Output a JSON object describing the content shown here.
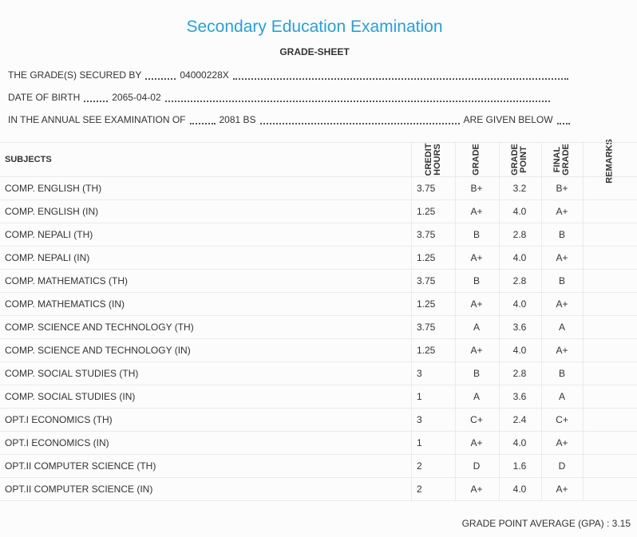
{
  "header": {
    "title": "Secondary Education Examination",
    "subtitle": "GRADE-SHEET"
  },
  "info": [
    {
      "label": "THE GRADE(S) SECURED BY",
      "value": "04000228X"
    },
    {
      "label": "DATE OF BIRTH",
      "value": "2065-04-02"
    },
    {
      "label": "IN THE ANNUAL SEE EXAMINATION OF",
      "value": "2081 BS",
      "tail": "ARE GIVEN BELOW"
    }
  ],
  "table": {
    "columns": [
      "SUBJECTS",
      "CREDIT HOURS",
      "GRADE",
      "GRADE POINT",
      "FINAL GRADE",
      "REMARKS"
    ],
    "rows": [
      [
        "COMP. ENGLISH (TH)",
        "3.75",
        "B+",
        "3.2",
        "B+"
      ],
      [
        "COMP. ENGLISH (IN)",
        "1.25",
        "A+",
        "4.0",
        "A+"
      ],
      [
        "COMP. NEPALI (TH)",
        "3.75",
        "B",
        "2.8",
        "B"
      ],
      [
        "COMP. NEPALI (IN)",
        "1.25",
        "A+",
        "4.0",
        "A+"
      ],
      [
        "COMP. MATHEMATICS (TH)",
        "3.75",
        "B",
        "2.8",
        "B"
      ],
      [
        "COMP. MATHEMATICS (IN)",
        "1.25",
        "A+",
        "4.0",
        "A+"
      ],
      [
        "COMP. SCIENCE AND TECHNOLOGY (TH)",
        "3.75",
        "A",
        "3.6",
        "A"
      ],
      [
        "COMP. SCIENCE AND TECHNOLOGY (IN)",
        "1.25",
        "A+",
        "4.0",
        "A+"
      ],
      [
        "COMP. SOCIAL STUDIES (TH)",
        "3",
        "B",
        "2.8",
        "B"
      ],
      [
        "COMP. SOCIAL STUDIES (IN)",
        "1",
        "A",
        "3.6",
        "A"
      ],
      [
        "OPT.I ECONOMICS (TH)",
        "3",
        "C+",
        "2.4",
        "C+"
      ],
      [
        "OPT.I ECONOMICS (IN)",
        "1",
        "A+",
        "4.0",
        "A+"
      ],
      [
        "OPT.II COMPUTER SCIENCE (TH)",
        "2",
        "D",
        "1.6",
        "D"
      ],
      [
        "OPT.II COMPUTER SCIENCE (IN)",
        "2",
        "A+",
        "4.0",
        "A+"
      ]
    ]
  },
  "footer": {
    "label": "GRADE POINT AVERAGE (GPA) :",
    "value": "3.15"
  }
}
